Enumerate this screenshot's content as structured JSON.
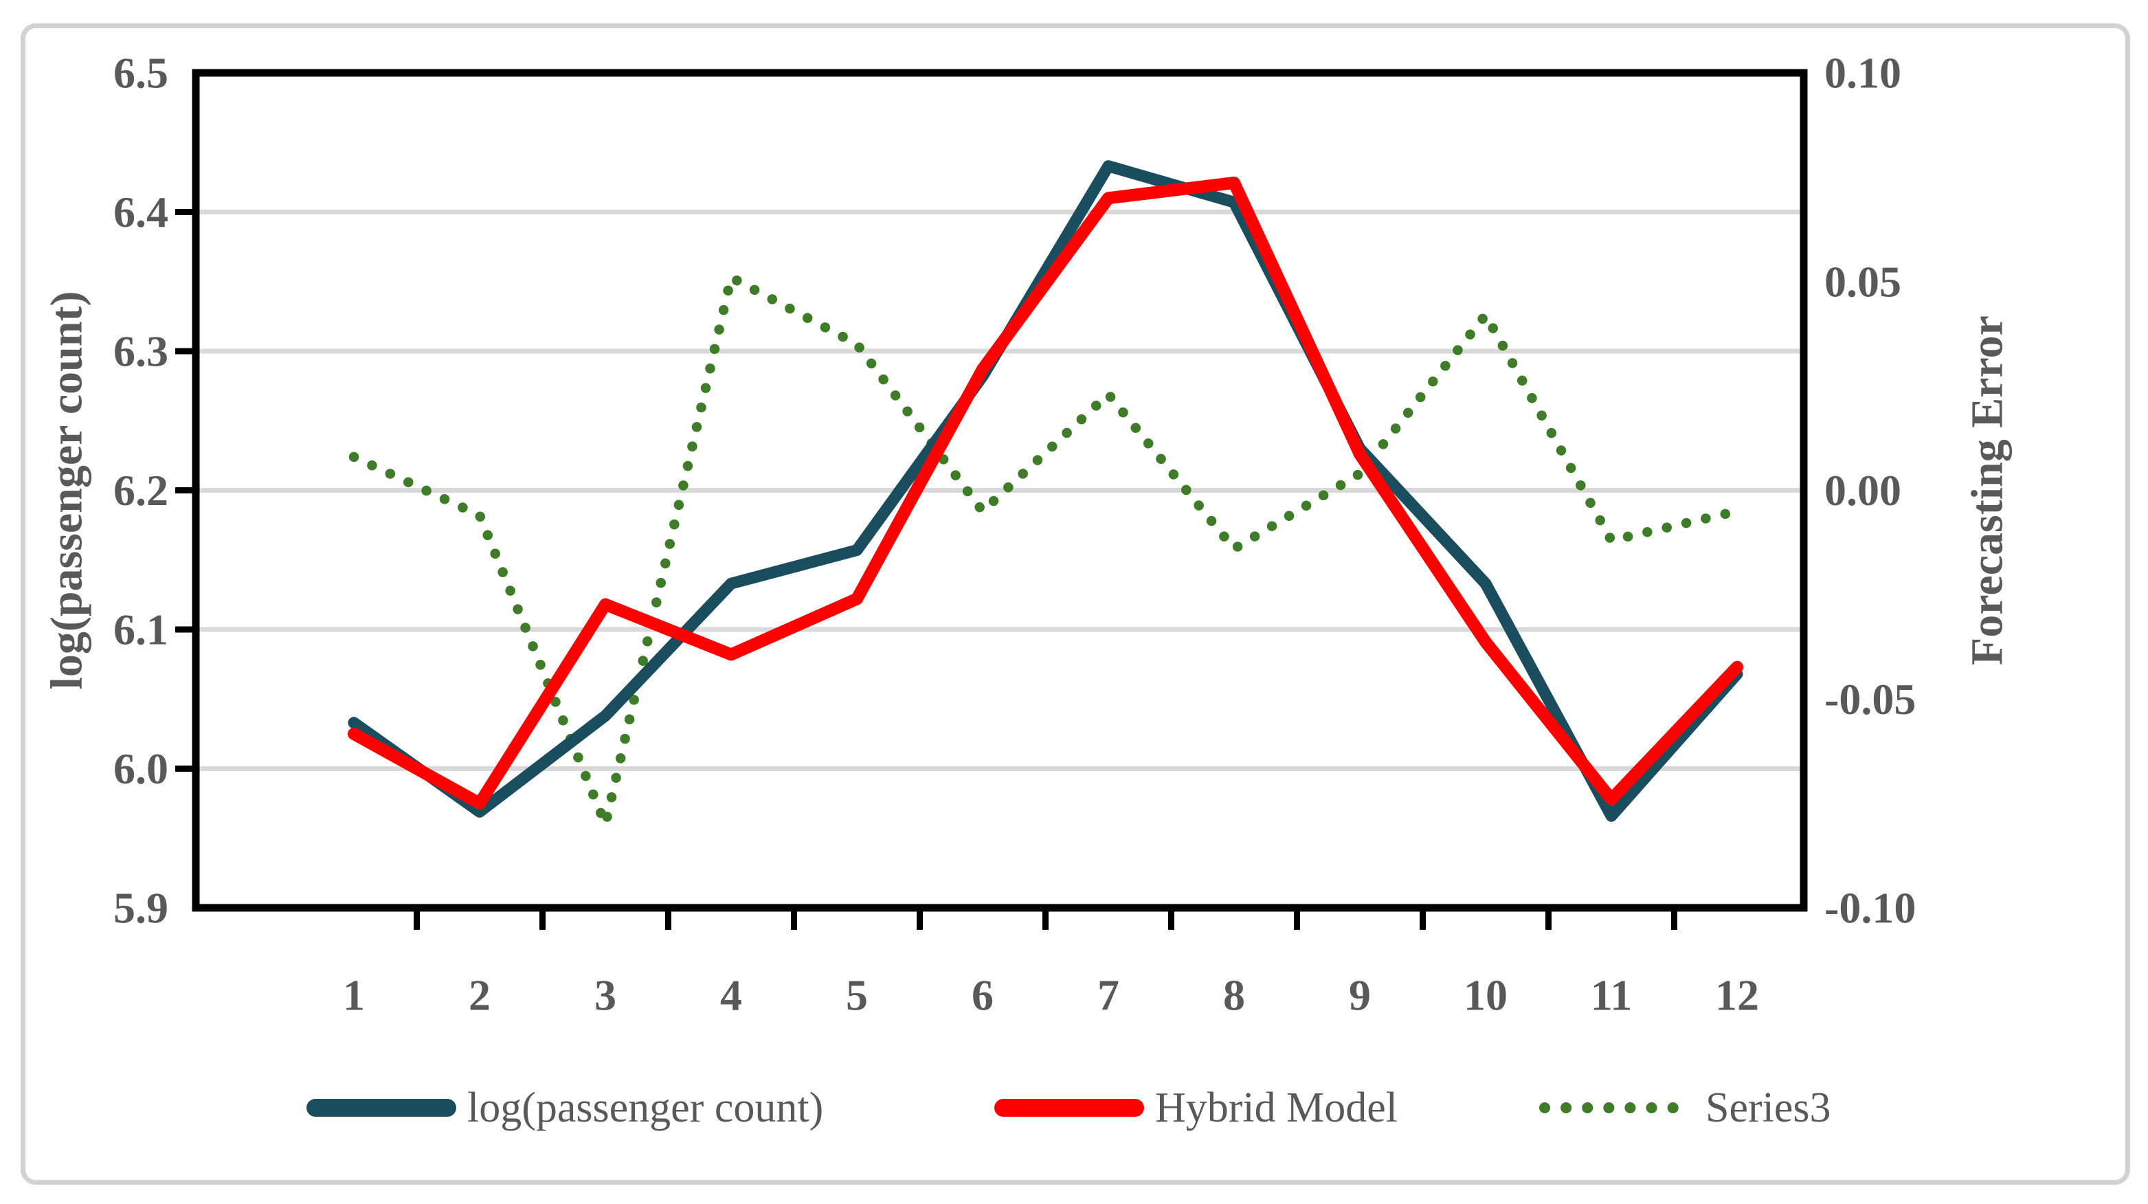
{
  "figure": {
    "kind": "dual-axis line chart",
    "background": "#ffffff",
    "frame_color": "#d2d2d2"
  },
  "chart_data": {
    "type": "line",
    "categories": [
      1,
      2,
      3,
      4,
      5,
      6,
      7,
      8,
      9,
      10,
      11,
      12
    ],
    "series": [
      {
        "name": "log(passenger count)",
        "axis": "left",
        "style": "solid",
        "color": "#1a4d5e",
        "values": [
          6.033,
          5.969,
          6.038,
          6.133,
          6.157,
          6.282,
          6.433,
          6.407,
          6.23,
          6.133,
          5.966,
          6.068
        ]
      },
      {
        "name": "Hybrid Model",
        "axis": "left",
        "style": "solid",
        "color": "#ff0000",
        "values": [
          6.025,
          5.975,
          6.118,
          6.082,
          6.122,
          6.287,
          6.41,
          6.421,
          6.226,
          6.091,
          5.978,
          6.073
        ]
      },
      {
        "name": "Series3",
        "axis": "right",
        "style": "dotted",
        "color": "#3e7c28",
        "values": [
          0.008,
          -0.006,
          -0.08,
          0.051,
          0.035,
          -0.005,
          0.023,
          -0.014,
          0.004,
          0.042,
          -0.012,
          -0.005
        ]
      }
    ],
    "left_axis": {
      "label": "log(passenger count)",
      "min": 5.9,
      "max": 6.5,
      "ticks": [
        6.5,
        6.4,
        6.3,
        6.2,
        6.1,
        6.0,
        5.9
      ],
      "decimals": 1
    },
    "right_axis": {
      "label": "Forecasting Error",
      "min": -0.1,
      "max": 0.1,
      "ticks": [
        0.1,
        0.05,
        0.0,
        -0.05,
        -0.1
      ],
      "decimals": 2
    },
    "x_axis": {
      "tick_labels": [
        "1",
        "2",
        "3",
        "4",
        "5",
        "6",
        "7",
        "8",
        "9",
        "10",
        "11",
        "12"
      ]
    },
    "grid": true,
    "legend_position": "bottom",
    "colors": {
      "gridline": "#d9d9d9",
      "axis_line": "#000000",
      "tick_text": "#595959"
    }
  }
}
